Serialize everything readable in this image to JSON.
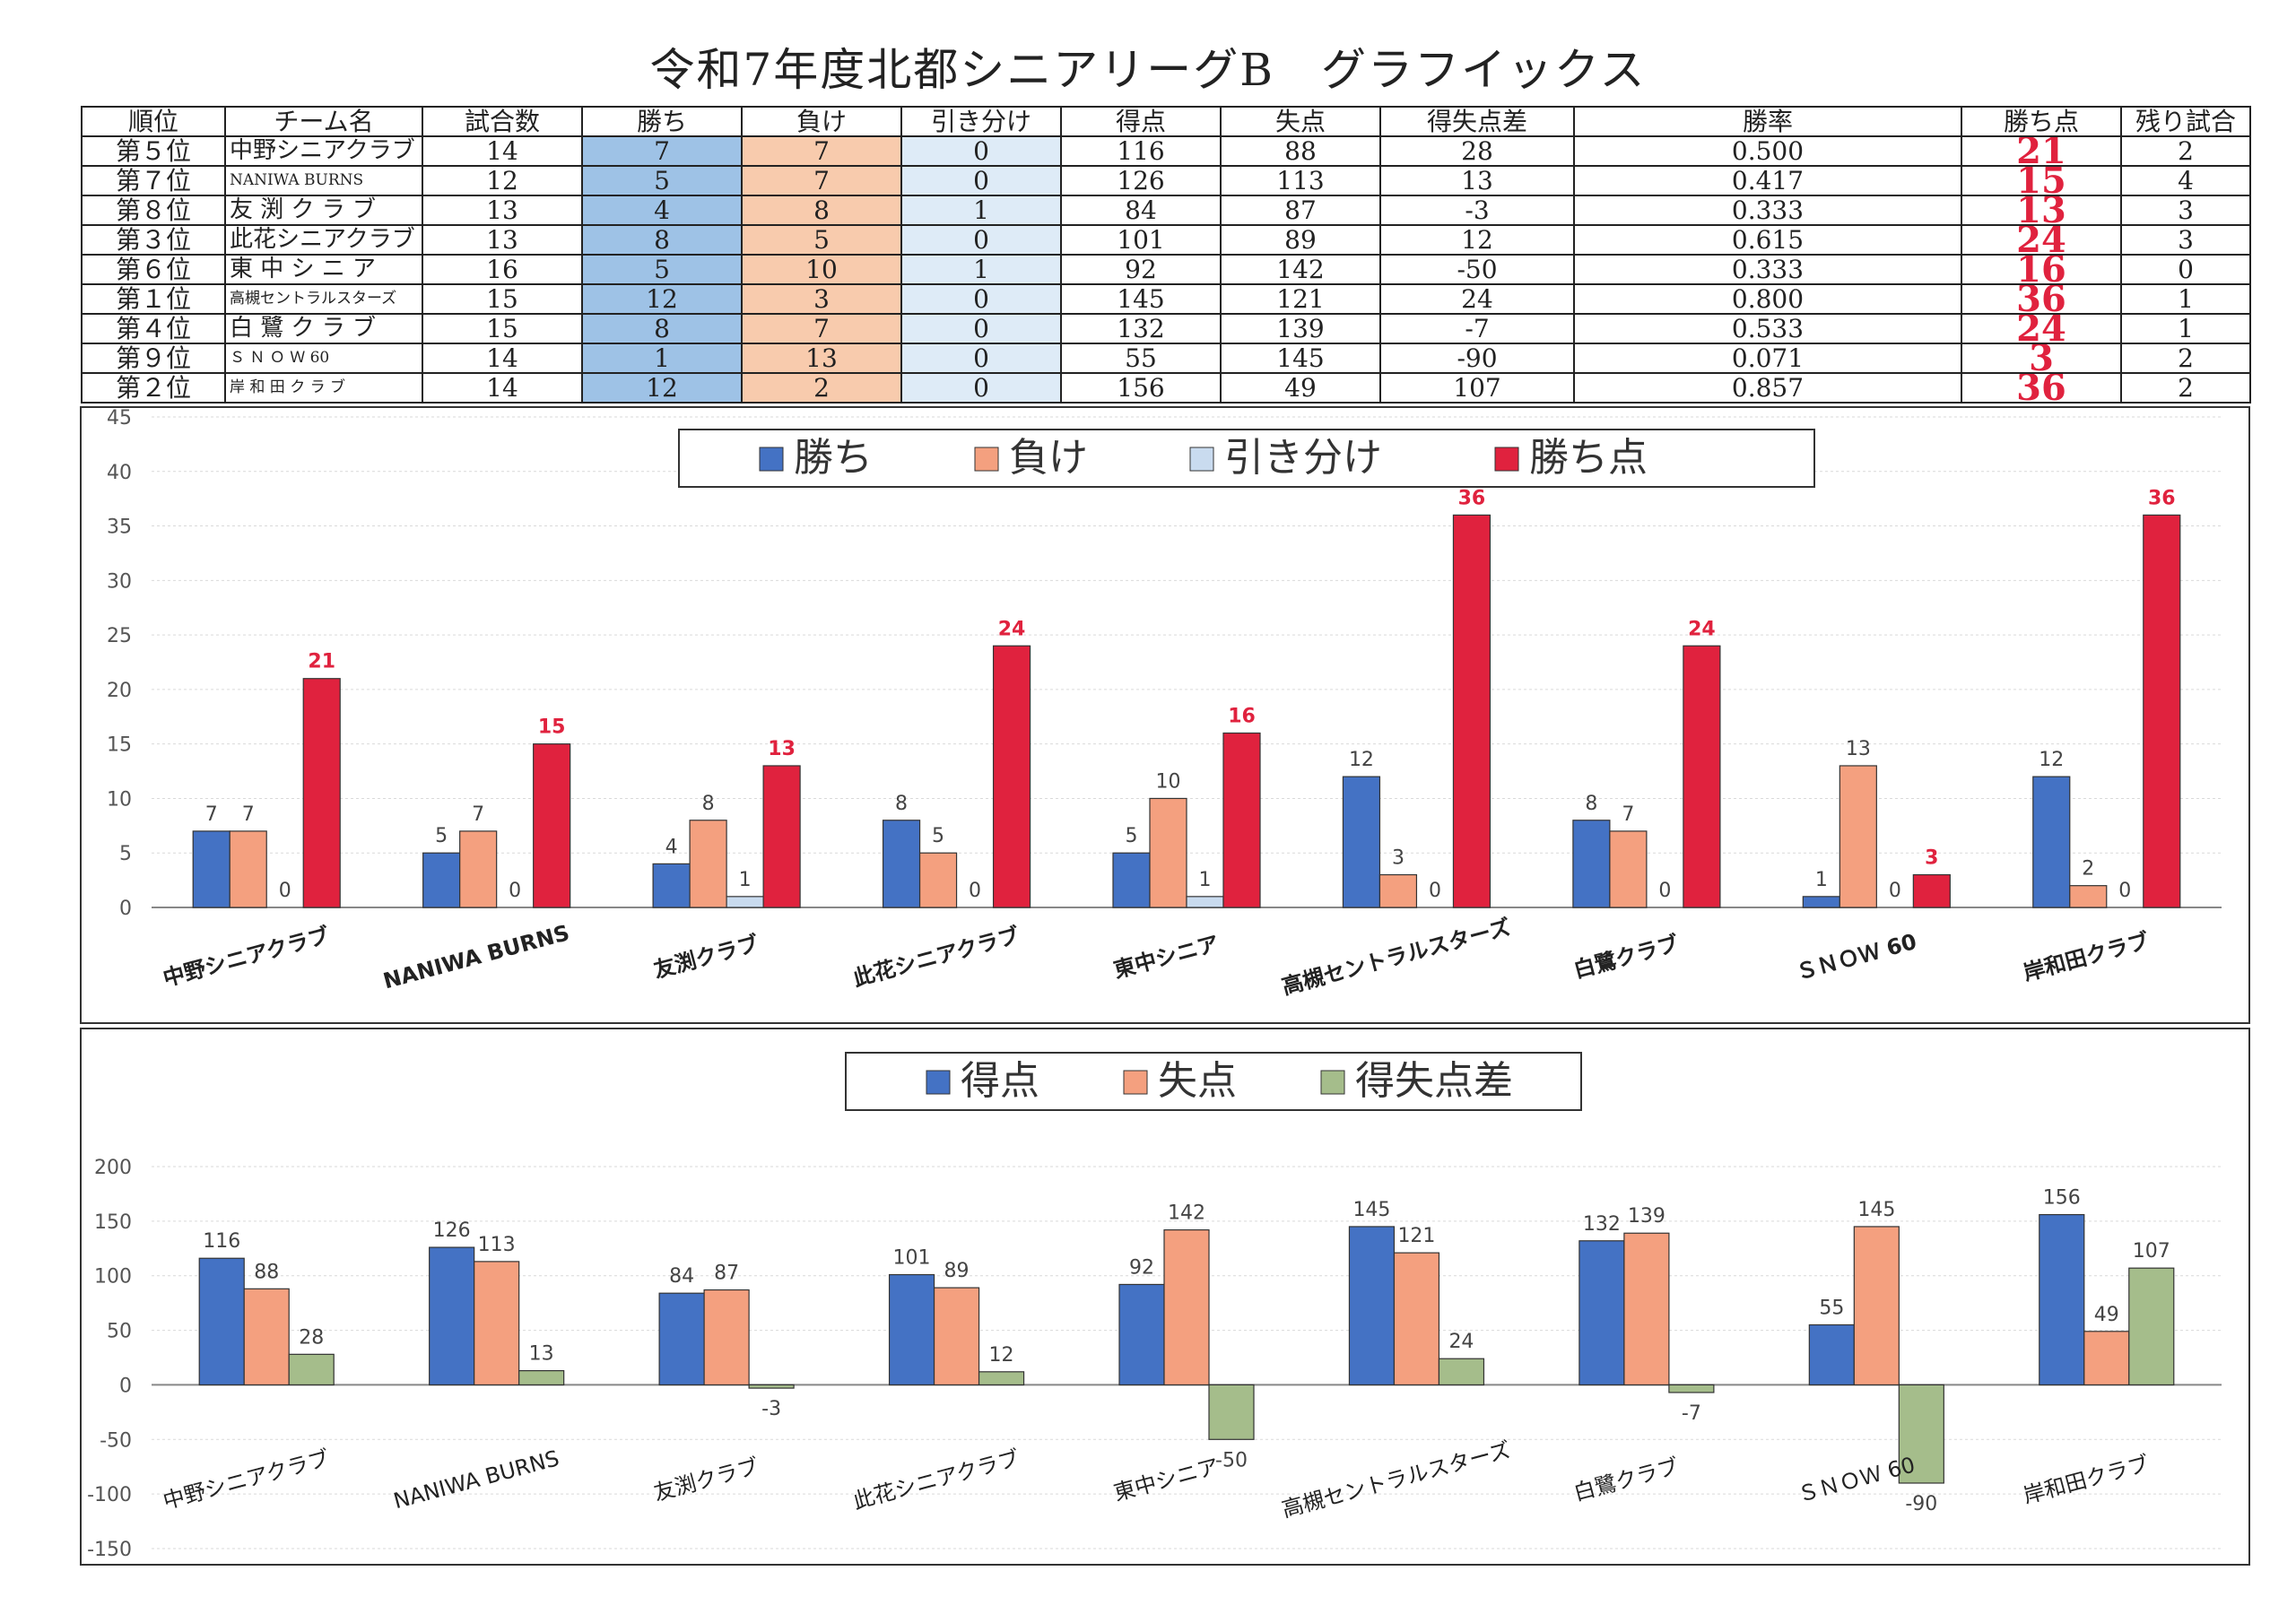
{
  "title": "令和7年度北都シニアリーグB　グラフイックス",
  "table": {
    "headers": [
      "順位",
      "チーム名",
      "試合数",
      "勝ち",
      "負け",
      "引き分け",
      "得点",
      "失点",
      "得失点差",
      "勝率",
      "勝ち点",
      "残り試合"
    ],
    "rows": [
      {
        "rank": "第５位",
        "team": "中野シニアクラブ",
        "games": "14",
        "wins": "7",
        "losses": "7",
        "draws": "0",
        "runs_for": "116",
        "runs_against": "88",
        "diff": "28",
        "pct": "0.500",
        "points": "21",
        "remaining": "2"
      },
      {
        "rank": "第７位",
        "team": "NANIWA BURNS",
        "games": "12",
        "wins": "5",
        "losses": "7",
        "draws": "0",
        "runs_for": "126",
        "runs_against": "113",
        "diff": "13",
        "pct": "0.417",
        "points": "15",
        "remaining": "4"
      },
      {
        "rank": "第８位",
        "team": "友 渕 ク ラ ブ",
        "games": "13",
        "wins": "4",
        "losses": "8",
        "draws": "1",
        "runs_for": "84",
        "runs_against": "87",
        "diff": "-3",
        "pct": "0.333",
        "points": "13",
        "remaining": "3"
      },
      {
        "rank": "第３位",
        "team": "此花シニアクラブ",
        "games": "13",
        "wins": "8",
        "losses": "5",
        "draws": "0",
        "runs_for": "101",
        "runs_against": "89",
        "diff": "12",
        "pct": "0.615",
        "points": "24",
        "remaining": "3"
      },
      {
        "rank": "第６位",
        "team": "東 中 シ ニ ア",
        "games": "16",
        "wins": "5",
        "losses": "10",
        "draws": "1",
        "runs_for": "92",
        "runs_against": "142",
        "diff": "-50",
        "pct": "0.333",
        "points": "16",
        "remaining": "0"
      },
      {
        "rank": "第１位",
        "team": "高槻セントラルスターズ",
        "games": "15",
        "wins": "12",
        "losses": "3",
        "draws": "0",
        "runs_for": "145",
        "runs_against": "121",
        "diff": "24",
        "pct": "0.800",
        "points": "36",
        "remaining": "1"
      },
      {
        "rank": "第４位",
        "team": "白 鷺 ク ラ ブ",
        "games": "15",
        "wins": "8",
        "losses": "7",
        "draws": "0",
        "runs_for": "132",
        "runs_against": "139",
        "diff": "-7",
        "pct": "0.533",
        "points": "24",
        "remaining": "1"
      },
      {
        "rank": "第９位",
        "team": "Ｓ Ｎ Ｏ Ｗ 60",
        "games": "14",
        "wins": "1",
        "losses": "13",
        "draws": "0",
        "runs_for": "55",
        "runs_against": "145",
        "diff": "-90",
        "pct": "0.071",
        "points": "3",
        "remaining": "2"
      },
      {
        "rank": "第２位",
        "team": "岸 和 田 ク ラ ブ",
        "games": "14",
        "wins": "12",
        "losses": "2",
        "draws": "0",
        "runs_for": "156",
        "runs_against": "49",
        "diff": "107",
        "pct": "0.857",
        "points": "36",
        "remaining": "2"
      }
    ]
  },
  "colors": {
    "wins": "#4472c4",
    "losses": "#f4a07f",
    "draws": "#c9dbef",
    "points": "#e0223e",
    "runs_for": "#4472c4",
    "runs_against": "#f4a07f",
    "diff": "#a5bd8b",
    "table_win": "#9ec2e6",
    "table_loss": "#f8cbad",
    "table_draw": "#deebf7"
  },
  "chart_data": [
    {
      "type": "bar",
      "categories": [
        "中野シニアクラブ",
        "NANIWA BURNS",
        "友渕クラブ",
        "此花シニアクラブ",
        "東中シニア",
        "高槻セントラルスターズ",
        "白鷺クラブ",
        "ＳＮＯＷ 60",
        "岸和田クラブ"
      ],
      "series": [
        {
          "name": "勝ち",
          "values": [
            7,
            5,
            4,
            8,
            5,
            12,
            8,
            1,
            12
          ]
        },
        {
          "name": "負け",
          "values": [
            7,
            7,
            8,
            5,
            10,
            3,
            7,
            13,
            2
          ]
        },
        {
          "name": "引き分け",
          "values": [
            0,
            0,
            1,
            0,
            1,
            0,
            0,
            0,
            0
          ]
        },
        {
          "name": "勝ち点",
          "values": [
            21,
            15,
            13,
            24,
            16,
            36,
            24,
            3,
            36
          ]
        }
      ],
      "ylim": [
        0,
        45
      ],
      "yticks": [
        0,
        5,
        10,
        15,
        20,
        25,
        30,
        35,
        40,
        45
      ],
      "legend": "top-center",
      "grid": true
    },
    {
      "type": "bar",
      "categories": [
        "中野シニアクラブ",
        "NANIWA BURNS",
        "友渕クラブ",
        "此花シニアクラブ",
        "東中シニア",
        "高槻セントラルスターズ",
        "白鷺クラブ",
        "ＳＮＯＷ 60",
        "岸和田クラブ"
      ],
      "series": [
        {
          "name": "得点",
          "values": [
            116,
            126,
            84,
            101,
            92,
            145,
            132,
            55,
            156
          ]
        },
        {
          "name": "失点",
          "values": [
            88,
            113,
            87,
            89,
            142,
            121,
            139,
            145,
            49
          ]
        },
        {
          "name": "得失点差",
          "values": [
            28,
            13,
            -3,
            12,
            -50,
            24,
            -7,
            -90,
            107
          ]
        }
      ],
      "ylim": [
        -150,
        200
      ],
      "yticks": [
        -150,
        -100,
        -50,
        0,
        50,
        100,
        150,
        200
      ],
      "legend": "top-center",
      "grid": true
    }
  ]
}
